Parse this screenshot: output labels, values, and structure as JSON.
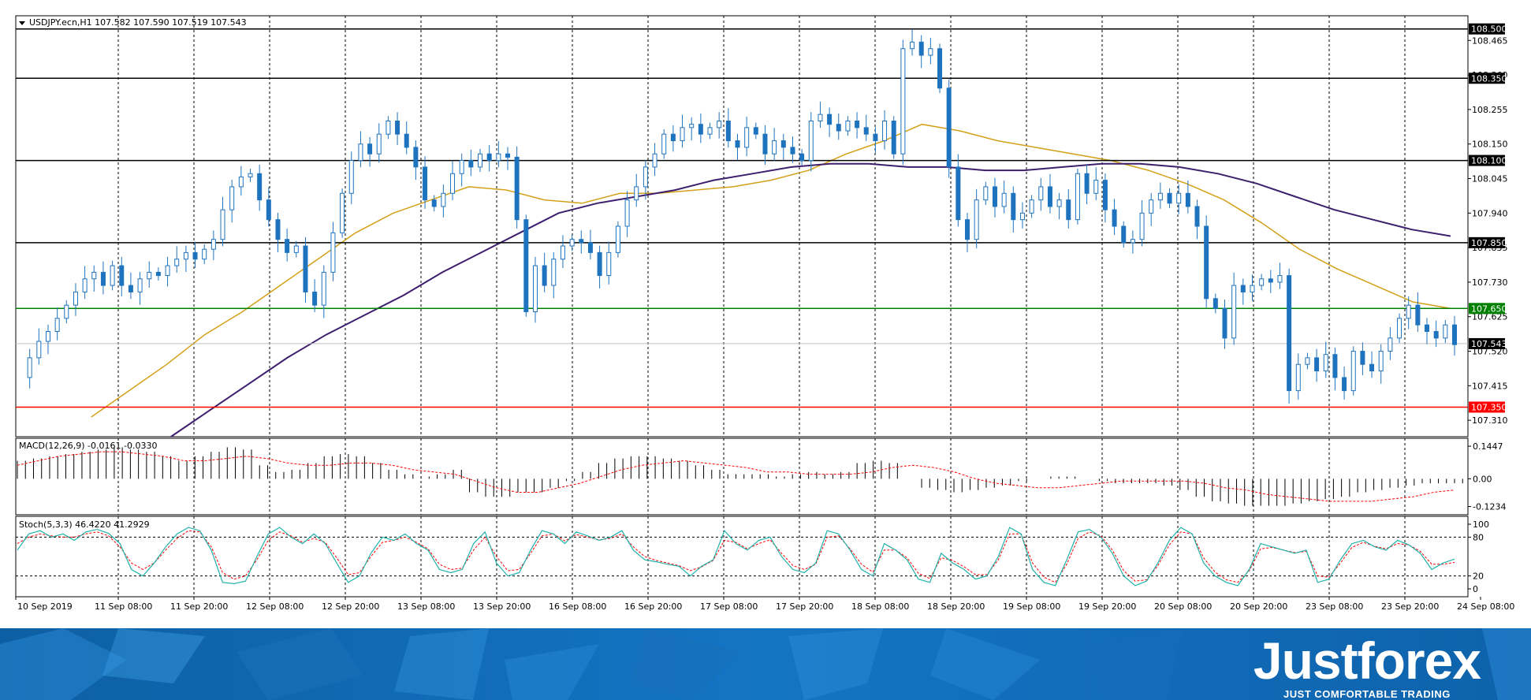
{
  "header": {
    "symbol_info": "USDJPY.ecn,H1  107.582 107.590 107.519 107.543"
  },
  "chart_data": [
    {
      "type": "candlestick",
      "symbol": "USDJPY.ecn",
      "timeframe": "H1",
      "ohlc_readout": {
        "open": 107.582,
        "high": 107.59,
        "low": 107.519,
        "close": 107.543
      },
      "ylim": [
        107.26,
        108.54
      ],
      "price_axis_ticks": [
        "108.465",
        "108.360",
        "108.255",
        "108.150",
        "108.045",
        "107.940",
        "107.835",
        "107.730",
        "107.625",
        "107.520",
        "107.415",
        "107.310"
      ],
      "horizontal_levels": [
        {
          "value": 108.5,
          "label": "108.500",
          "color": "#000000"
        },
        {
          "value": 108.35,
          "label": "108.350",
          "color": "#000000"
        },
        {
          "value": 108.1,
          "label": "108.100",
          "color": "#000000"
        },
        {
          "value": 107.85,
          "label": "107.850",
          "color": "#000000"
        },
        {
          "value": 107.65,
          "label": "107.650",
          "color": "#008000"
        },
        {
          "value": 107.35,
          "label": "107.350",
          "color": "#ff0000"
        }
      ],
      "current_price": {
        "value": 107.543,
        "label": "107.543",
        "line_color": "#c0c0c0"
      },
      "time_labels": [
        "10 Sep 2019",
        "11 Sep 08:00",
        "11 Sep 20:00",
        "12 Sep 08:00",
        "12 Sep 20:00",
        "13 Sep 08:00",
        "13 Sep 20:00",
        "16 Sep 08:00",
        "16 Sep 20:00",
        "17 Sep 08:00",
        "17 Sep 20:00",
        "18 Sep 08:00",
        "18 Sep 20:00",
        "19 Sep 08:00",
        "19 Sep 20:00",
        "20 Sep 08:00",
        "20 Sep 20:00",
        "23 Sep 08:00",
        "23 Sep 20:00",
        "24 Sep 08:00"
      ],
      "candle_color": "#1e73be",
      "price_path": [
        107.44,
        107.5,
        107.55,
        107.58,
        107.62,
        107.66,
        107.7,
        107.74,
        107.76,
        107.72,
        107.78,
        107.72,
        107.7,
        107.74,
        107.76,
        107.75,
        107.78,
        107.8,
        107.82,
        107.8,
        107.83,
        107.86,
        107.95,
        108.02,
        108.05,
        108.06,
        107.98,
        107.92,
        107.86,
        107.82,
        107.84,
        107.7,
        107.66,
        107.76,
        107.88,
        108.0,
        108.1,
        108.15,
        108.12,
        108.18,
        108.22,
        108.18,
        108.14,
        108.08,
        107.98,
        107.96,
        108.0,
        108.06,
        108.1,
        108.08,
        108.12,
        108.1,
        108.12,
        108.11,
        107.92,
        107.64,
        107.78,
        107.72,
        107.8,
        107.84,
        107.86,
        107.85,
        107.82,
        107.75,
        107.82,
        107.9,
        107.98,
        108.02,
        108.08,
        108.12,
        108.18,
        108.16,
        108.2,
        108.21,
        108.18,
        108.2,
        108.22,
        108.16,
        108.14,
        108.2,
        108.18,
        108.12,
        108.16,
        108.14,
        108.12,
        108.1,
        108.22,
        108.24,
        108.21,
        108.19,
        108.22,
        108.2,
        108.18,
        108.16,
        108.22,
        108.12,
        108.44,
        108.46,
        108.42,
        108.44,
        108.32,
        108.08,
        107.92,
        107.86,
        107.98,
        108.02,
        107.96,
        108.0,
        107.92,
        107.94,
        107.98,
        108.02,
        107.96,
        107.98,
        107.92,
        108.06,
        108.0,
        108.04,
        107.95,
        107.9,
        107.85,
        107.86,
        107.94,
        107.98,
        108.0,
        107.97,
        108.0,
        107.96,
        107.9,
        107.68,
        107.65,
        107.56,
        107.72,
        107.7,
        107.72,
        107.74,
        107.73,
        107.75,
        107.4,
        107.48,
        107.5,
        107.46,
        107.51,
        107.44,
        107.4,
        107.52,
        107.48,
        107.46,
        107.52,
        107.56,
        107.62,
        107.66,
        107.6,
        107.58,
        107.56,
        107.6,
        107.54
      ],
      "moving_averages": [
        {
          "color": "#d4a017",
          "values": [
            107.12,
            107.22,
            107.32,
            107.4,
            107.48,
            107.57,
            107.64,
            107.72,
            107.8,
            107.88,
            107.94,
            107.98,
            108.02,
            108.01,
            107.98,
            107.97,
            108.0,
            108.0,
            108.01,
            108.02,
            108.04,
            108.07,
            108.12,
            108.16,
            108.21,
            108.19,
            108.16,
            108.14,
            108.12,
            108.1,
            108.07,
            108.03,
            107.98,
            107.91,
            107.83,
            107.77,
            107.72,
            107.67,
            107.65
          ]
        },
        {
          "color": "#3d1f6e",
          "values": [
            106.85,
            106.96,
            107.07,
            107.17,
            107.26,
            107.34,
            107.42,
            107.5,
            107.57,
            107.63,
            107.69,
            107.76,
            107.82,
            107.88,
            107.94,
            107.97,
            107.99,
            108.01,
            108.04,
            108.06,
            108.08,
            108.09,
            108.09,
            108.08,
            108.08,
            108.07,
            108.07,
            108.08,
            108.09,
            108.09,
            108.08,
            108.06,
            108.03,
            107.99,
            107.95,
            107.92,
            107.89,
            107.87
          ]
        }
      ]
    },
    {
      "type": "histogram",
      "indicator": "MACD(12,26,9) -0.0161 -0.0330",
      "ylim": [
        -0.16,
        0.18
      ],
      "axis_ticks": [
        "0.1447",
        "0.00",
        "-0.1234"
      ],
      "histogram": [
        0.08,
        0.09,
        0.1,
        0.11,
        0.12,
        0.13,
        0.14,
        0.13,
        0.12,
        0.1,
        0.08,
        0.1,
        0.12,
        0.14,
        0.13,
        0.06,
        0.03,
        0.04,
        0.07,
        0.1,
        0.11,
        0.1,
        0.07,
        0.04,
        0.02,
        0.01,
        0.02,
        0.04,
        -0.06,
        -0.08,
        -0.08,
        -0.06,
        -0.06,
        -0.04,
        -0.01,
        0.03,
        0.07,
        0.09,
        0.1,
        0.1,
        0.09,
        0.08,
        0.06,
        0.04,
        0.02,
        0.02,
        0.02,
        0.01,
        0.02,
        0.03,
        0.02,
        0.03,
        0.07,
        0.08,
        0.07,
        0.0,
        -0.04,
        -0.05,
        -0.06,
        -0.05,
        -0.04,
        -0.03,
        -0.01,
        0.0,
        0.01,
        0.01,
        0.0,
        -0.01,
        -0.02,
        -0.02,
        -0.02,
        -0.03,
        -0.05,
        -0.08,
        -0.1,
        -0.11,
        -0.12,
        -0.12,
        -0.12,
        -0.11,
        -0.1,
        -0.09,
        -0.08,
        -0.06,
        -0.05,
        -0.04,
        -0.03,
        -0.02,
        -0.02,
        -0.02
      ],
      "signal": [
        0.06,
        0.08,
        0.1,
        0.11,
        0.12,
        0.12,
        0.11,
        0.1,
        0.08,
        0.08,
        0.09,
        0.1,
        0.09,
        0.07,
        0.06,
        0.06,
        0.07,
        0.07,
        0.06,
        0.04,
        0.03,
        0.02,
        -0.01,
        -0.04,
        -0.06,
        -0.06,
        -0.04,
        -0.02,
        0.01,
        0.04,
        0.06,
        0.07,
        0.08,
        0.07,
        0.06,
        0.05,
        0.03,
        0.03,
        0.02,
        0.02,
        0.02,
        0.03,
        0.05,
        0.06,
        0.05,
        0.03,
        0.0,
        -0.02,
        -0.03,
        -0.04,
        -0.04,
        -0.03,
        -0.02,
        -0.01,
        -0.01,
        -0.01,
        -0.01,
        -0.02,
        -0.04,
        -0.05,
        -0.07,
        -0.08,
        -0.09,
        -0.1,
        -0.1,
        -0.1,
        -0.09,
        -0.08,
        -0.06,
        -0.05
      ]
    },
    {
      "type": "line",
      "indicator": "Stoch(5,3,3) 46.4220 41.2929",
      "ylim": [
        0,
        100
      ],
      "axis_ticks": [
        "100",
        "80",
        "20",
        "0"
      ],
      "levels": [
        80,
        20
      ],
      "main": [
        60,
        85,
        90,
        80,
        85,
        75,
        88,
        92,
        86,
        70,
        30,
        20,
        40,
        65,
        85,
        95,
        90,
        60,
        10,
        8,
        12,
        50,
        85,
        95,
        80,
        70,
        85,
        70,
        40,
        10,
        20,
        55,
        80,
        75,
        85,
        70,
        60,
        30,
        25,
        30,
        70,
        88,
        40,
        20,
        25,
        60,
        90,
        85,
        70,
        88,
        82,
        75,
        80,
        90,
        60,
        45,
        42,
        38,
        35,
        20,
        35,
        45,
        90,
        70,
        60,
        75,
        80,
        50,
        30,
        25,
        40,
        90,
        85,
        60,
        30,
        20,
        70,
        60,
        45,
        15,
        10,
        55,
        40,
        30,
        15,
        20,
        50,
        95,
        85,
        30,
        10,
        5,
        45,
        88,
        92,
        80,
        55,
        20,
        5,
        12,
        40,
        75,
        95,
        85,
        40,
        20,
        10,
        5,
        30,
        70,
        65,
        60,
        55,
        60,
        10,
        15,
        45,
        70,
        75,
        65,
        60,
        75,
        68,
        55,
        30,
        40,
        46
      ],
      "signal": [
        70,
        80,
        85,
        82,
        80,
        80,
        85,
        88,
        82,
        65,
        40,
        30,
        40,
        60,
        78,
        90,
        88,
        65,
        25,
        15,
        20,
        45,
        75,
        88,
        82,
        72,
        78,
        72,
        48,
        22,
        25,
        50,
        72,
        75,
        80,
        72,
        62,
        38,
        30,
        32,
        60,
        80,
        50,
        28,
        30,
        55,
        82,
        85,
        74,
        84,
        80,
        76,
        78,
        85,
        65,
        50,
        44,
        40,
        36,
        28,
        34,
        44,
        75,
        72,
        62,
        70,
        76,
        55,
        36,
        30,
        38,
        80,
        82,
        62,
        38,
        26,
        60,
        60,
        48,
        24,
        16,
        48,
        44,
        34,
        22,
        22,
        45,
        85,
        85,
        40,
        18,
        10,
        38,
        78,
        88,
        82,
        60,
        28,
        12,
        14,
        36,
        68,
        88,
        85,
        48,
        26,
        14,
        10,
        28,
        62,
        64,
        60,
        56,
        58,
        20,
        18,
        40,
        64,
        72,
        66,
        62,
        70,
        68,
        58,
        38,
        38,
        41
      ]
    }
  ],
  "footer": {
    "brand": "Justforex",
    "tagline": "JUST COMFORTABLE TRADING"
  }
}
